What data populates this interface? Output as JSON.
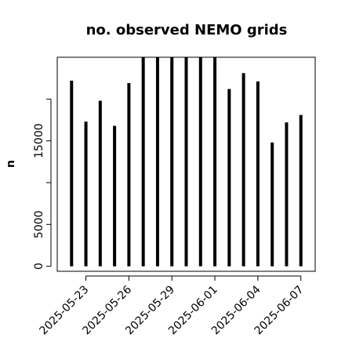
{
  "chart_data": {
    "type": "bar",
    "title": "no. observed NEMO grids",
    "xlabel": "",
    "ylabel": "n",
    "x": [
      "2025-05-22",
      "2025-05-23",
      "2025-05-24",
      "2025-05-25",
      "2025-05-26",
      "2025-05-27",
      "2025-05-28",
      "2025-05-29",
      "2025-05-30",
      "2025-05-31",
      "2025-06-01",
      "2025-06-02",
      "2025-06-03",
      "2025-06-04",
      "2025-06-05",
      "2025-06-06",
      "2025-06-07"
    ],
    "values": [
      22200,
      17300,
      19800,
      16800,
      21900,
      25000,
      25000,
      25000,
      25000,
      25000,
      25000,
      21200,
      23100,
      22100,
      14800,
      17200,
      18100
    ],
    "xlim": [
      "2025-05-21",
      "2025-06-08"
    ],
    "ylim": [
      -600,
      25000
    ],
    "y_ticks": [
      0,
      5000,
      10000,
      15000,
      20000
    ],
    "y_tick_labels": [
      "0",
      "5000",
      "",
      "15000",
      ""
    ],
    "x_ticks": [
      "2025-05-23",
      "2025-05-26",
      "2025-05-29",
      "2025-06-01",
      "2025-06-04",
      "2025-06-07"
    ],
    "x_tick_labels": [
      "2025-05-23",
      "2025-05-26",
      "2025-05-29",
      "2025-06-01",
      "2025-06-04",
      "2025-06-07"
    ],
    "bar_color": "#000000",
    "grid": false
  }
}
